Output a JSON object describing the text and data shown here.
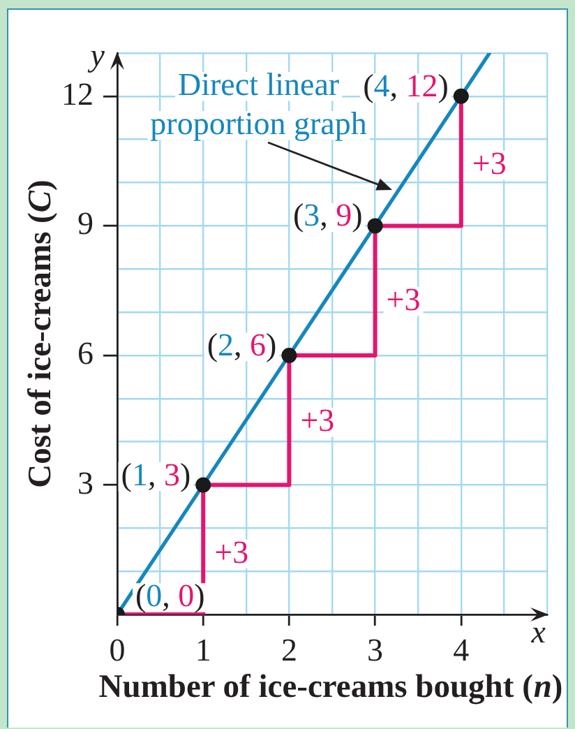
{
  "chart_data": {
    "type": "line",
    "xlabel": "Number of ice-creams bought (n)",
    "ylabel": "Cost of ice-creams (C)",
    "annotations": [
      "y",
      {
        "text": "Direct linear proportion graph",
        "x": 3.3,
        "y": 9.9
      },
      {
        "text": "+3",
        "x": 4,
        "y": 10.4
      },
      {
        "text": "+3",
        "x": 3,
        "y": 7.25
      },
      {
        "text": "+3",
        "x": 2,
        "y": 4.45
      },
      {
        "text": "+3",
        "x": 1,
        "y": 1.4
      },
      "x"
    ],
    "series": [
      {
        "type": "line",
        "color": "#1687bd",
        "x": [
          0,
          4.33
        ],
        "values": [
          0,
          13
        ]
      },
      {
        "type": "step",
        "color": "#e5156e",
        "x": [
          0,
          1,
          2,
          3,
          4
        ],
        "values": [
          0,
          3,
          6,
          9,
          12
        ]
      },
      {
        "type": "scatter",
        "color": "#1a1a1a",
        "x": [
          0,
          1,
          2,
          3,
          4
        ],
        "values": [
          0,
          3,
          6,
          9,
          12
        ],
        "marker": "circle",
        "value_labels": [
          "(0, 0)",
          "(1, 3)",
          "(2, 6)",
          "(3, 9)",
          "(4, 12)"
        ]
      }
    ],
    "xlim": [
      0,
      5
    ],
    "ylim": [
      0,
      13
    ],
    "xticks": [
      0,
      {
        "value": 0.5,
        "label": null
      },
      1,
      {
        "value": 1.5,
        "label": null
      },
      2,
      {
        "value": 2.5,
        "label": null
      },
      3,
      {
        "value": 3.5,
        "label": null
      },
      4,
      {
        "value": 4.5,
        "label": null
      },
      {
        "value": 5,
        "label": null
      }
    ],
    "yticks": [
      {
        "value": 0,
        "label": null
      },
      {
        "value": 1,
        "label": null
      },
      {
        "value": 2,
        "label": null
      },
      3,
      {
        "value": 4,
        "label": null
      },
      {
        "value": 5,
        "label": null
      },
      6,
      {
        "value": 7,
        "label": null
      },
      {
        "value": 8,
        "label": null
      },
      9,
      {
        "value": 10,
        "label": null
      },
      {
        "value": 11,
        "label": null
      },
      12,
      {
        "value": 13,
        "label": null
      }
    ],
    "grid": true
  }
}
